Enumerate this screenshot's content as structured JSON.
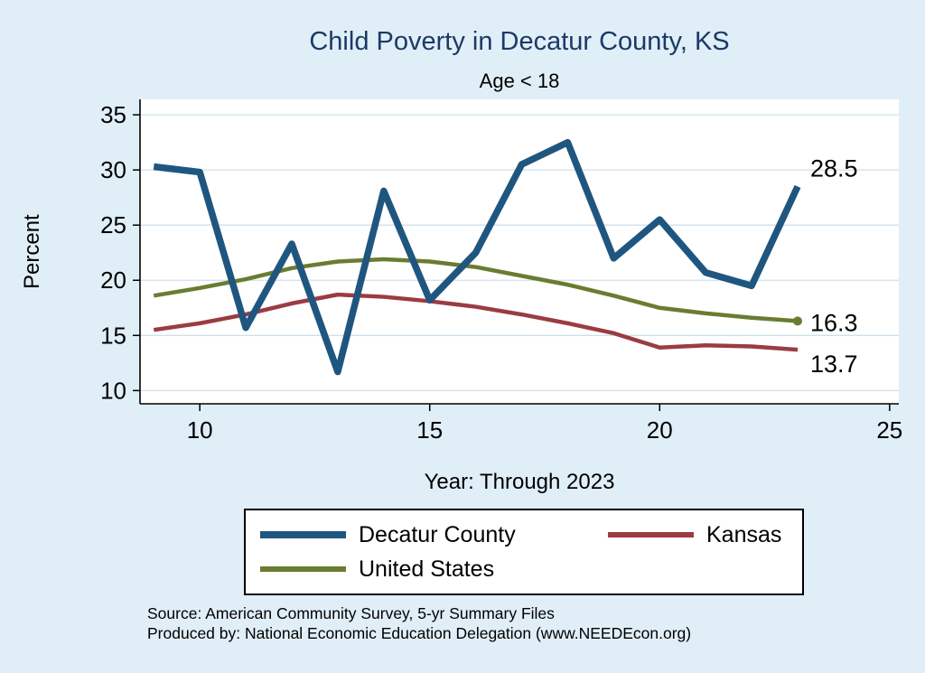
{
  "title": "Child Poverty in Decatur County, KS",
  "subtitle": "Age < 18",
  "colors": {
    "background": "#e0eef7",
    "plot_background": "#ffffff",
    "grid": "#cfe0ec",
    "axis": "#000000",
    "title_text": "#1b3a66",
    "decatur": "#1f567f",
    "kansas": "#9a3c42",
    "united_states": "#6a7c31"
  },
  "chart_data": {
    "type": "line",
    "xlabel": "Year: Through 2023",
    "ylabel": "Percent",
    "x": [
      9,
      10,
      11,
      12,
      13,
      14,
      15,
      16,
      17,
      18,
      19,
      20,
      21,
      22,
      23
    ],
    "xlim": [
      8.7,
      25.2
    ],
    "ylim": [
      8.8,
      36.4
    ],
    "xticks": [
      10,
      15,
      20,
      25
    ],
    "yticks": [
      10,
      15,
      20,
      25,
      30,
      35
    ],
    "grid": true,
    "legend_position": "bottom",
    "series": [
      {
        "name": "Decatur County",
        "color": "#1f567f",
        "width": 7.5,
        "values": [
          30.3,
          29.8,
          15.7,
          23.3,
          11.7,
          28.1,
          18.2,
          22.5,
          30.5,
          32.5,
          22.0,
          25.5,
          20.7,
          19.5,
          28.5
        ],
        "end_label": "28.5",
        "label_dy": -20,
        "end_marker": false
      },
      {
        "name": "Kansas",
        "color": "#9a3c42",
        "width": 4.5,
        "values": [
          15.5,
          16.1,
          16.9,
          17.9,
          18.7,
          18.5,
          18.1,
          17.6,
          16.9,
          16.1,
          15.2,
          13.9,
          14.1,
          14.0,
          13.7
        ],
        "end_label": "13.7",
        "label_dy": 16,
        "end_marker": false
      },
      {
        "name": "United States",
        "color": "#6a7c31",
        "width": 4.5,
        "values": [
          18.6,
          19.3,
          20.1,
          21.1,
          21.7,
          21.9,
          21.7,
          21.2,
          20.4,
          19.6,
          18.6,
          17.5,
          17.0,
          16.6,
          16.3
        ],
        "end_label": "16.3",
        "label_dy": 2,
        "end_marker": true
      }
    ]
  },
  "source": {
    "line1": "Source: American Community Survey, 5-yr Summary Files",
    "line2": "Produced by: National Economic Education Delegation (www.NEEDEcon.org)"
  }
}
